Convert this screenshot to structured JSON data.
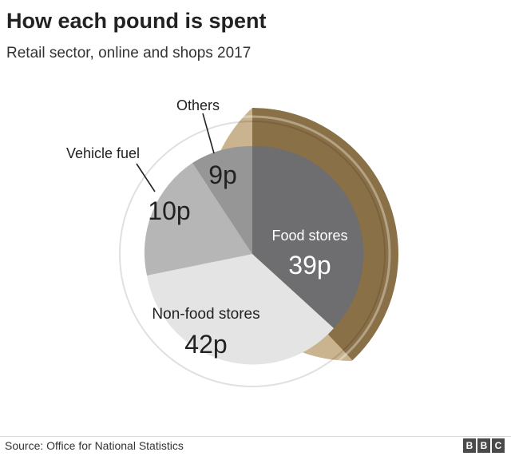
{
  "header": {
    "title": "How each pound is spent",
    "subtitle": "Retail sector, online and shops 2017"
  },
  "footer": {
    "source": "Source: Office for National Statistics",
    "logo_letters": [
      "B",
      "B",
      "C"
    ]
  },
  "colors": {
    "coin_ring": "#c9b48f",
    "coin_ring_dark": "#8a7046",
    "food_stores": "#6e6d6f",
    "non_food_stores": "#e4e4e4",
    "vehicle_fuel": "#b7b6b6",
    "others": "#969696",
    "text_dark": "#222222",
    "text_light": "#ffffff"
  },
  "chart_data": {
    "type": "pie",
    "title": "How each pound is spent",
    "subtitle": "Retail sector, online and shops 2017",
    "unit": "p",
    "slices": [
      {
        "label": "Food stores",
        "value": 39,
        "value_label": "39p"
      },
      {
        "label": "Non-food stores",
        "value": 42,
        "value_label": "42p"
      },
      {
        "label": "Vehicle fuel",
        "value": 10,
        "value_label": "10p"
      },
      {
        "label": "Others",
        "value": 9,
        "value_label": "9p"
      }
    ]
  }
}
